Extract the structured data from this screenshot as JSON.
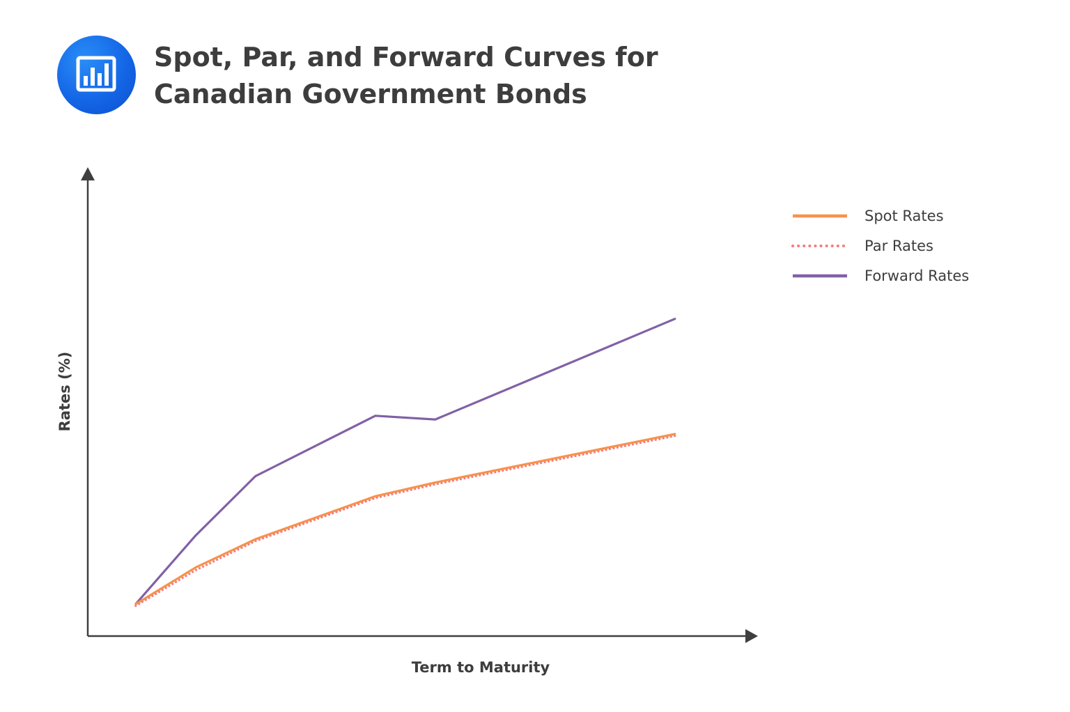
{
  "header": {
    "title_line1": "Spot, Par, and Forward Curves for",
    "title_line2": "Canadian Government Bonds",
    "icon": "bar-chart-icon",
    "icon_color": "#1466e6"
  },
  "chart_data": {
    "type": "line",
    "title": "Spot, Par, and Forward Curves for Canadian Government Bonds",
    "xlabel": "Term to Maturity",
    "ylabel": "Rates (%)",
    "x": [
      0.5,
      1,
      1.5,
      2.5,
      3,
      5
    ],
    "xlim": [
      0.1,
      5.6
    ],
    "ylim": [
      0,
      5
    ],
    "grid": false,
    "legend_position": "top-right",
    "series": [
      {
        "name": "Spot Rates",
        "color": "#f7924a",
        "style": "solid",
        "values": [
          0.35,
          0.75,
          1.06,
          1.53,
          1.68,
          2.21
        ]
      },
      {
        "name": "Par Rates",
        "color": "#f47d7d",
        "style": "dotted",
        "values": [
          0.33,
          0.72,
          1.04,
          1.51,
          1.66,
          2.19
        ]
      },
      {
        "name": "Forward Rates",
        "color": "#8161a6",
        "style": "solid",
        "values": [
          0.35,
          1.1,
          1.75,
          2.41,
          2.37,
          3.47
        ]
      }
    ]
  }
}
